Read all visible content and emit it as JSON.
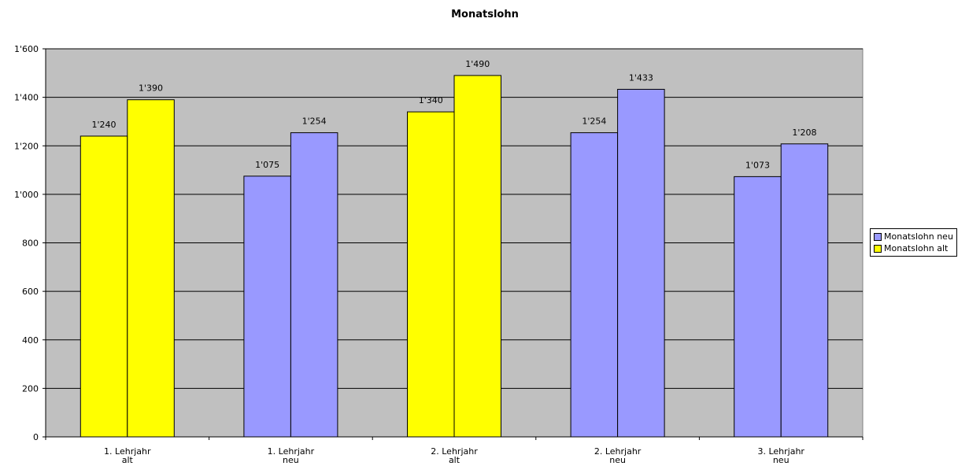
{
  "chart_data": {
    "type": "bar",
    "title": "Monatslohn",
    "categories": [
      [
        "1. Lehrjahr",
        "alt"
      ],
      [
        "1. Lehrjahr",
        "neu"
      ],
      [
        "2. Lehrjahr",
        "alt"
      ],
      [
        "2. Lehrjahr",
        "neu"
      ],
      [
        "3. Lehrjahr",
        "neu"
      ]
    ],
    "bars": [
      [
        {
          "value": 1240,
          "label": "1'240",
          "color": "#ffff00"
        },
        {
          "value": 1390,
          "label": "1'390",
          "color": "#ffff00"
        }
      ],
      [
        {
          "value": 1075,
          "label": "1'075",
          "color": "#9999ff"
        },
        {
          "value": 1254,
          "label": "1'254",
          "color": "#9999ff"
        }
      ],
      [
        {
          "value": 1340,
          "label": "1'340",
          "color": "#ffff00"
        },
        {
          "value": 1490,
          "label": "1'490",
          "color": "#ffff00"
        }
      ],
      [
        {
          "value": 1254,
          "label": "1'254",
          "color": "#9999ff"
        },
        {
          "value": 1433,
          "label": "1'433",
          "color": "#9999ff"
        }
      ],
      [
        {
          "value": 1073,
          "label": "1'073",
          "color": "#9999ff"
        },
        {
          "value": 1208,
          "label": "1'208",
          "color": "#9999ff"
        }
      ]
    ],
    "ylim": [
      0,
      1600
    ],
    "yticks": [
      {
        "value": 0,
        "label": "0"
      },
      {
        "value": 200,
        "label": "200"
      },
      {
        "value": 400,
        "label": "400"
      },
      {
        "value": 600,
        "label": "600"
      },
      {
        "value": 800,
        "label": "800"
      },
      {
        "value": 1000,
        "label": "1'000"
      },
      {
        "value": 1200,
        "label": "1'200"
      },
      {
        "value": 1400,
        "label": "1'400"
      },
      {
        "value": 1600,
        "label": "1'600"
      }
    ],
    "grid": true,
    "plot_background": "#c0c0c0",
    "legend": {
      "placement": "right",
      "items": [
        {
          "name": "Monatslohn neu",
          "color": "#9999ff"
        },
        {
          "name": "Monatslohn alt",
          "color": "#ffff00"
        }
      ]
    }
  }
}
